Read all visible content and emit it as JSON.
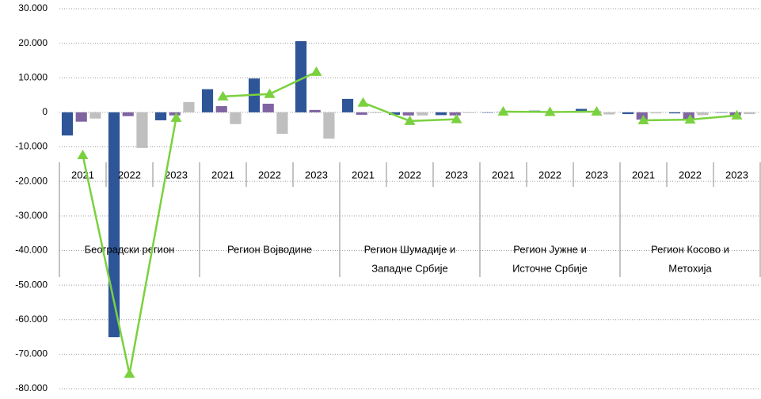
{
  "chart_data": {
    "type": "bar",
    "categories": [
      "2021",
      "2022",
      "2023",
      "2021",
      "2022",
      "2023",
      "2021",
      "2022",
      "2023",
      "2021",
      "2022",
      "2023",
      "2021",
      "2022",
      "2023"
    ],
    "groups": [
      [
        "Београдски регион"
      ],
      [
        "Регион Војводине"
      ],
      [
        "Регион Шумадије и",
        "Западне Србије"
      ],
      [
        "Регион Јужне и",
        "Источне Србије"
      ],
      [
        "Регион Косово и",
        "Метохија"
      ]
    ],
    "series": [
      {
        "color": "#2e5597",
        "values": [
          -6700,
          -65100,
          -2300,
          6700,
          9800,
          20600,
          3900,
          -700,
          -800,
          0,
          500,
          1000,
          -500,
          -300,
          -100
        ]
      },
      {
        "color": "#8064a2",
        "values": [
          -2700,
          -1100,
          -900,
          1800,
          2500,
          700,
          -700,
          -900,
          -900,
          100,
          200,
          300,
          -2100,
          -1900,
          -900
        ]
      },
      {
        "color": "#bfbfbf",
        "values": [
          -1800,
          -10300,
          3000,
          -3400,
          -6200,
          -7600,
          -200,
          -900,
          -200,
          0,
          -100,
          -600,
          -300,
          -800,
          -500
        ]
      },
      {
        "type": "line",
        "color": "#7ad13f",
        "values": [
          -12400,
          -75700,
          -1600,
          4600,
          5300,
          11700,
          2800,
          -2500,
          -2000,
          200,
          100,
          200,
          -2300,
          -2100,
          -900
        ]
      }
    ],
    "ylim": [
      -80000,
      30000
    ],
    "yticks": [
      {
        "value": 30000,
        "label": "30.000"
      },
      {
        "value": 20000,
        "label": "20.000"
      },
      {
        "value": 10000,
        "label": "10.000"
      },
      0,
      {
        "value": -10000,
        "label": "-10.000"
      },
      {
        "value": -20000,
        "label": "-20.000"
      },
      {
        "value": -30000,
        "label": "-30.000"
      },
      {
        "value": -40000,
        "label": "-40.000"
      },
      {
        "value": -50000,
        "label": "-50.000"
      },
      {
        "value": -60000,
        "label": "-60.000"
      },
      {
        "value": -70000,
        "label": "-70.000"
      },
      {
        "value": -80000,
        "label": "-80.000"
      }
    ],
    "grid": true
  }
}
